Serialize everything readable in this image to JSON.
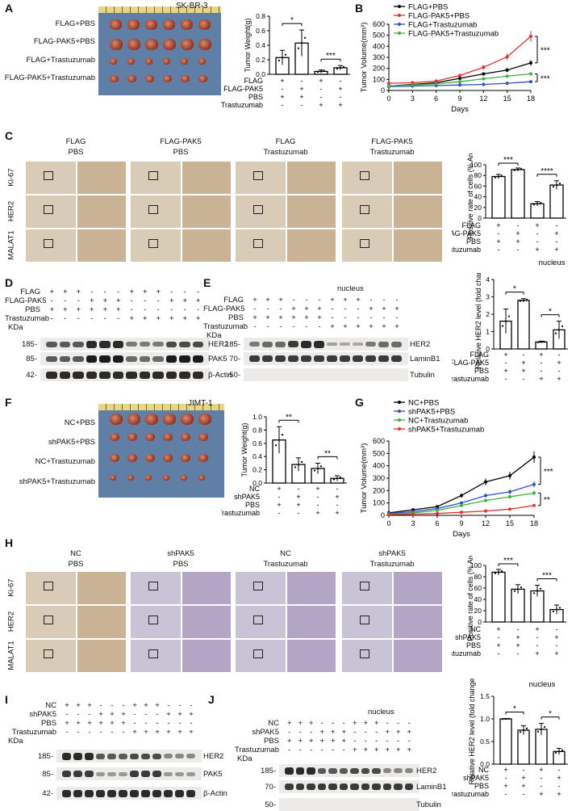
{
  "panels": {
    "A": {
      "label": "A",
      "cell_line": "SK-BR-3",
      "groups": [
        "FLAG+PBS",
        "FLAG-PAK5+PBS",
        "FLAG+Trastuzumab",
        "FLAG-PAK5+Trastuzumab"
      ],
      "ylabel": "Tumor Weight(g)",
      "yticks": [
        "0.0",
        "0.2",
        "0.4",
        "0.6",
        "0.8"
      ],
      "sig": [
        "*",
        "***"
      ],
      "rows": [
        {
          "name": "FLAG",
          "signs": [
            "+",
            "-",
            "+",
            "-"
          ]
        },
        {
          "name": "FLAG-PAK5",
          "signs": [
            "-",
            "+",
            "-",
            "+"
          ]
        },
        {
          "name": "PBS",
          "signs": [
            "+",
            "+",
            "-",
            "-"
          ]
        },
        {
          "name": "Trastuzumab",
          "signs": [
            "-",
            "-",
            "+",
            "+"
          ]
        }
      ]
    },
    "B": {
      "label": "B",
      "ylabel": "Tumor Volume(mm³)",
      "xlabel": "Days",
      "sig": [
        "***",
        "***"
      ]
    },
    "C": {
      "label": "C",
      "col_titles": [
        [
          "FLAG",
          "PBS"
        ],
        [
          "FLAG-PAK5",
          "PBS"
        ],
        [
          "FLAG",
          "Trastuzumab"
        ],
        [
          "FLAG-PAK5",
          "Trastuzumab"
        ]
      ],
      "row_labels": [
        "Ki-67",
        "HER2",
        "MALAT1"
      ],
      "ylabel": "Positive rate of cells (% Area)",
      "yticks": [
        "0",
        "20",
        "40",
        "60",
        "80",
        "100"
      ],
      "sig": [
        "***",
        "****"
      ],
      "rows": [
        {
          "name": "FLAG",
          "signs": [
            "+",
            "-",
            "+",
            "-"
          ]
        },
        {
          "name": "FLAG-PAK5",
          "signs": [
            "-",
            "+",
            "-",
            "+"
          ]
        },
        {
          "name": "PBS",
          "signs": [
            "+",
            "+",
            "-",
            "-"
          ]
        },
        {
          "name": "Trastuzumab",
          "signs": [
            "-",
            "-",
            "+",
            "+"
          ]
        }
      ],
      "footer": "nucleus"
    },
    "D": {
      "label": "D",
      "rows": [
        {
          "name": "FLAG",
          "signs": "+ + + - - - + + + - - -"
        },
        {
          "name": "FLAG-PAK5",
          "signs": "- - - + + + - - - + + +"
        },
        {
          "name": "PBS",
          "signs": "+ + + + + + - - - - - -"
        },
        {
          "name": "Trastuzumab",
          "signs": "- - - - - - + + + + + +"
        }
      ],
      "kda": "KDa",
      "markers": [
        "185-",
        "85-",
        "42-"
      ],
      "bands": [
        "HER2",
        "PAK5",
        "β-Actin"
      ]
    },
    "E": {
      "label": "E",
      "title": "nucleus",
      "rows": [
        {
          "name": "FLAG",
          "signs": "+ + + - - - + + + - - -"
        },
        {
          "name": "FLAG-PAK5",
          "signs": "- - - + + + - - - + + +"
        },
        {
          "name": "PBS",
          "signs": "+ + + + + + - - - - - -"
        },
        {
          "name": "Trastuzumab",
          "signs": "- - - - - - + + + + + +"
        }
      ],
      "kda": "KDa",
      "markers": [
        "185-",
        "70-",
        "50-"
      ],
      "bands": [
        "HER2",
        "LaminB1",
        "Tubulin"
      ],
      "ylabel": "Relative HER2 level (fold change)",
      "yticks": [
        "0",
        "1",
        "2",
        "3",
        "4"
      ],
      "sig": [
        "*",
        "*"
      ],
      "chart_rows": [
        {
          "name": "FLAG",
          "signs": [
            "+",
            "-",
            "+",
            "-"
          ]
        },
        {
          "name": "FLAG-PAK5",
          "signs": [
            "-",
            "+",
            "-",
            "+"
          ]
        },
        {
          "name": "PBS",
          "signs": [
            "+",
            "+",
            "-",
            "-"
          ]
        },
        {
          "name": "Trastuzumab",
          "signs": [
            "-",
            "-",
            "+",
            "+"
          ]
        }
      ]
    },
    "F": {
      "label": "F",
      "cell_line": "JIMT-1",
      "groups": [
        "NC+PBS",
        "shPAK5+PBS",
        "NC+Trastuzumab",
        "shPAK5+Trastuzumab"
      ],
      "ylabel": "Tumor Weight(g)",
      "yticks": [
        "0.0",
        "0.2",
        "0.4",
        "0.6",
        "0.8",
        "1.0"
      ],
      "sig": [
        "**",
        "**"
      ],
      "rows": [
        {
          "name": "NC",
          "signs": [
            "+",
            "-",
            "+",
            "-"
          ]
        },
        {
          "name": "shPAK5",
          "signs": [
            "-",
            "+",
            "-",
            "+"
          ]
        },
        {
          "name": "PBS",
          "signs": [
            "+",
            "+",
            "-",
            "-"
          ]
        },
        {
          "name": "Trastuzumab",
          "signs": [
            "-",
            "-",
            "+",
            "+"
          ]
        }
      ]
    },
    "G": {
      "label": "G",
      "ylabel": "Tumor Volume(mm³)",
      "xlabel": "Days",
      "sig": [
        "***",
        "**"
      ]
    },
    "H": {
      "label": "H",
      "col_titles": [
        [
          "NC",
          "PBS"
        ],
        [
          "shPAK5",
          "PBS"
        ],
        [
          "NC",
          "Trastuzumab"
        ],
        [
          "shPAK5",
          "Trastuzumab"
        ]
      ],
      "row_labels": [
        "Ki-67",
        "HER2",
        "MALAT1"
      ],
      "ylabel": "Positive rate of cells (% Area)",
      "yticks": [
        "0",
        "20",
        "40",
        "60",
        "80",
        "100"
      ],
      "sig": [
        "***",
        "***"
      ],
      "rows": [
        {
          "name": "NC",
          "signs": [
            "+",
            "-",
            "+",
            "-"
          ]
        },
        {
          "name": "shPAK5",
          "signs": [
            "-",
            "+",
            "-",
            "+"
          ]
        },
        {
          "name": "PBS",
          "signs": [
            "+",
            "+",
            "-",
            "-"
          ]
        },
        {
          "name": "Trastuzumab",
          "signs": [
            "-",
            "-",
            "+",
            "+"
          ]
        }
      ]
    },
    "I": {
      "label": "I",
      "rows": [
        {
          "name": "NC",
          "signs": "+ + + - - - + + + - - -"
        },
        {
          "name": "shPAK5",
          "signs": "- - - + + + - - - + + +"
        },
        {
          "name": "PBS",
          "signs": "+ + + + + + - - - - - -"
        },
        {
          "name": "Trastuzumab",
          "signs": "- - - - - - + + + + + +"
        }
      ],
      "kda": "KDa",
      "markers": [
        "185-",
        "85-",
        "42-"
      ],
      "bands": [
        "HER2",
        "PAK5",
        "β-Actin"
      ]
    },
    "J": {
      "label": "J",
      "title": "nucleus",
      "rows": [
        {
          "name": "NC",
          "signs": "+ + + - - - + + + - - -"
        },
        {
          "name": "shPAK5",
          "signs": "- - - + + + - - - + + +"
        },
        {
          "name": "PBS",
          "signs": "+ + + + + + - - - - - -"
        },
        {
          "name": "Trastuzumab",
          "signs": "- - - - - - + + + + + +"
        }
      ],
      "kda": "KDa",
      "markers": [
        "185-",
        "70-",
        "50-"
      ],
      "bands": [
        "HER2",
        "LaminB1",
        "Tubulin"
      ],
      "ylabel": "Relative HER2 level (fold change)",
      "yticks": [
        "0.0",
        "0.5",
        "1.0",
        "1.5"
      ],
      "sig": [
        "*",
        "*"
      ],
      "chart_title": "nucleus",
      "chart_rows": [
        {
          "name": "NC",
          "signs": [
            "+",
            "-",
            "+",
            "-"
          ]
        },
        {
          "name": "shPAK5",
          "signs": [
            "-",
            "+",
            "-",
            "+"
          ]
        },
        {
          "name": "PBS",
          "signs": [
            "+",
            "+",
            "-",
            "-"
          ]
        },
        {
          "name": "Trastuzumab",
          "signs": [
            "-",
            "-",
            "+",
            "+"
          ]
        }
      ]
    }
  },
  "chart_data": [
    {
      "id": "A",
      "type": "bar",
      "ylabel": "Tumor Weight(g)",
      "ylim": [
        0,
        0.8
      ],
      "values": [
        0.23,
        0.43,
        0.04,
        0.09
      ],
      "errors": [
        0.1,
        0.18,
        0.02,
        0.03
      ]
    },
    {
      "id": "B",
      "type": "line",
      "xlabel": "Days",
      "ylabel": "Tumor Volume(mm³)",
      "x": [
        0,
        3,
        6,
        9,
        12,
        15,
        18
      ],
      "xlim": [
        0,
        18
      ],
      "ylim": [
        0,
        600
      ],
      "xticks": [
        0,
        3,
        6,
        9,
        12,
        15,
        18
      ],
      "yticks": [
        0,
        100,
        200,
        300,
        400,
        500,
        600
      ],
      "series": [
        {
          "name": "FLAG+PBS",
          "color": "#000000",
          "values": [
            40,
            55,
            70,
            110,
            150,
            185,
            250
          ]
        },
        {
          "name": "FLAG-PAK5+PBS",
          "color": "#e03030",
          "values": [
            65,
            70,
            85,
            135,
            210,
            305,
            490
          ]
        },
        {
          "name": "FLAG+Trastuzumab",
          "color": "#3050c8",
          "values": [
            35,
            40,
            45,
            50,
            55,
            65,
            80
          ]
        },
        {
          "name": "FLAG-PAK5+Trastuzumab",
          "color": "#40b040",
          "values": [
            40,
            50,
            60,
            80,
            105,
            130,
            150
          ]
        }
      ]
    },
    {
      "id": "C",
      "type": "bar",
      "ylabel": "Positive rate of cells (% Area)",
      "ylim": [
        0,
        100
      ],
      "values": [
        78,
        91,
        27,
        62
      ],
      "errors": [
        4,
        3,
        4,
        8
      ]
    },
    {
      "id": "E",
      "type": "bar",
      "ylabel": "Relative HER2 level (fold change)",
      "ylim": [
        0,
        4
      ],
      "values": [
        1.6,
        2.8,
        0.4,
        1.1
      ],
      "errors": [
        0.7,
        0.1,
        0.05,
        0.5
      ]
    },
    {
      "id": "F",
      "type": "bar",
      "ylabel": "Tumor Weight(g)",
      "ylim": [
        0,
        1.0
      ],
      "values": [
        0.65,
        0.28,
        0.22,
        0.07
      ],
      "errors": [
        0.2,
        0.1,
        0.08,
        0.04
      ]
    },
    {
      "id": "G",
      "type": "line",
      "xlabel": "Days",
      "ylabel": "Tumor Volume(mm³)",
      "x": [
        0,
        3,
        6,
        9,
        12,
        15,
        18
      ],
      "xlim": [
        0,
        18
      ],
      "ylim": [
        0,
        600
      ],
      "xticks": [
        0,
        3,
        6,
        9,
        12,
        15,
        18
      ],
      "yticks": [
        0,
        100,
        200,
        300,
        400,
        500,
        600
      ],
      "series": [
        {
          "name": "NC+PBS",
          "color": "#000000",
          "values": [
            20,
            45,
            70,
            160,
            270,
            320,
            470
          ]
        },
        {
          "name": "shPAK5+PBS",
          "color": "#3050c8",
          "values": [
            15,
            30,
            55,
            100,
            160,
            190,
            250
          ]
        },
        {
          "name": "NC+Trastuzumab",
          "color": "#40b040",
          "values": [
            10,
            20,
            40,
            80,
            120,
            150,
            180
          ]
        },
        {
          "name": "shPAK5+Trastuzumab",
          "color": "#e03030",
          "values": [
            5,
            10,
            15,
            25,
            35,
            50,
            80
          ]
        }
      ]
    },
    {
      "id": "H",
      "type": "bar",
      "ylabel": "Positive rate of cells (% Area)",
      "ylim": [
        0,
        100
      ],
      "values": [
        88,
        58,
        55,
        22
      ],
      "errors": [
        5,
        8,
        10,
        8
      ]
    },
    {
      "id": "J",
      "type": "bar",
      "ylabel": "Relative HER2 level (fold change)",
      "ylim": [
        0,
        1.5
      ],
      "values": [
        1.0,
        0.75,
        0.77,
        0.28
      ],
      "errors": [
        0.01,
        0.1,
        0.13,
        0.07
      ]
    }
  ]
}
